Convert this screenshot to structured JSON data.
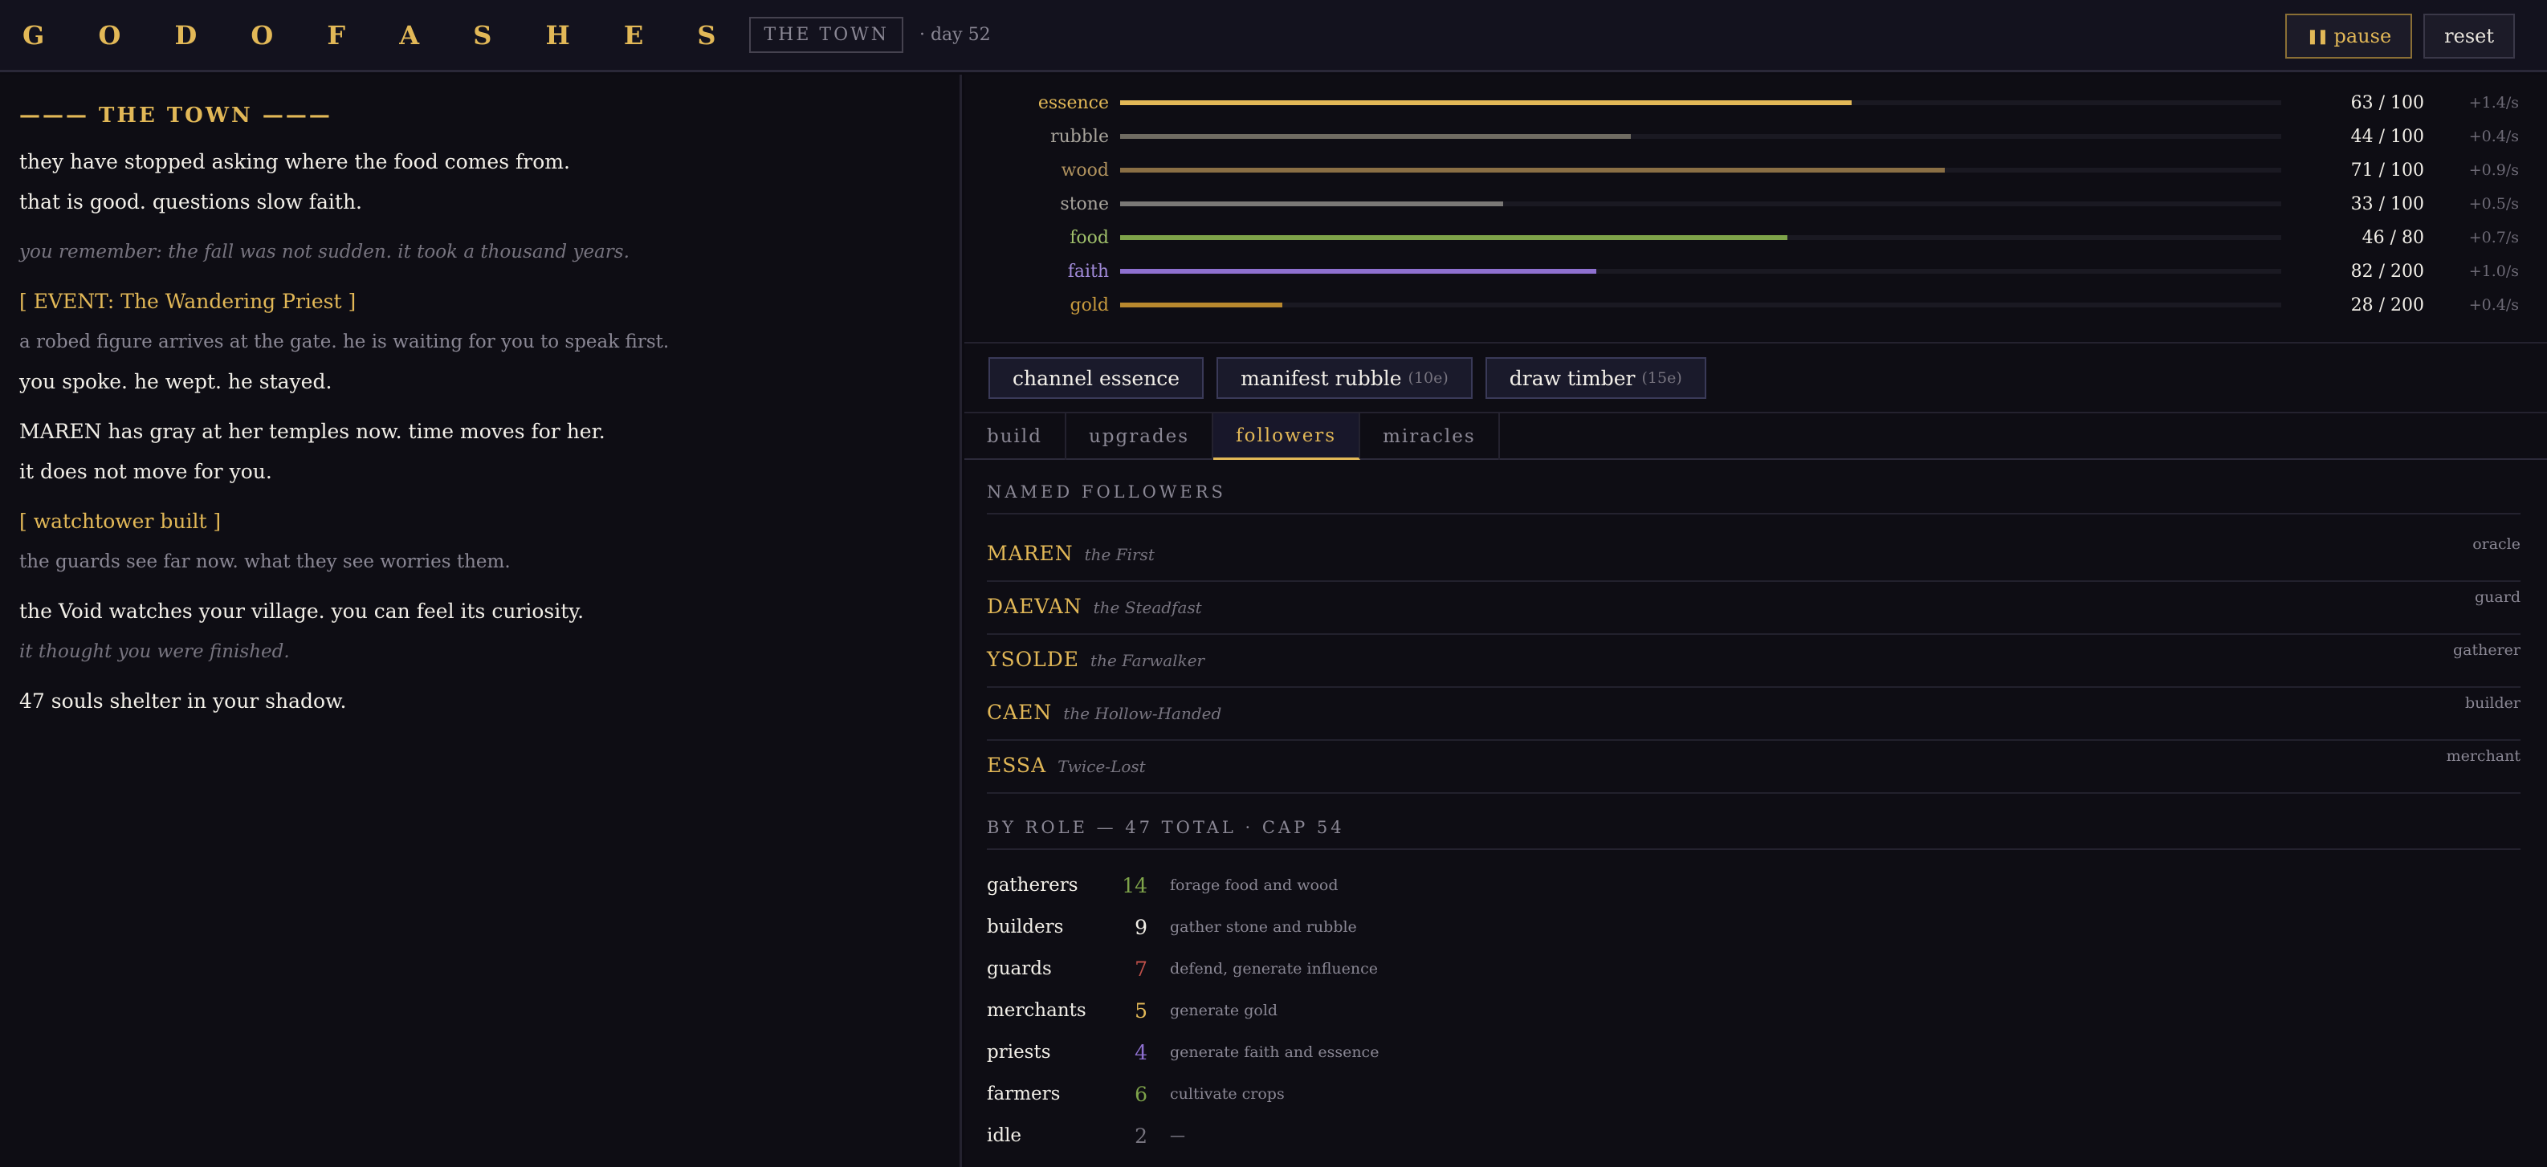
{
  "header": {
    "title": "G O D  O F  A S H E S",
    "location": "THE TOWN",
    "day": "· day 52",
    "pause_label": "pause",
    "reset_label": "reset"
  },
  "log": {
    "header": "——— THE TOWN ———",
    "lines": [
      {
        "text": "they have stopped asking where the food comes from.",
        "style": "white"
      },
      {
        "text": "that is good. questions slow faith.",
        "style": "white"
      },
      {
        "text": "you remember: the fall was not sudden. it took a thousand years.",
        "style": "italic"
      },
      {
        "text": "[ EVENT: The Wandering Priest ]",
        "style": "event"
      },
      {
        "text": "a robed figure arrives at the gate. he is waiting for you to speak first.",
        "style": "dim"
      },
      {
        "text": "you spoke. he wept. he stayed.",
        "style": "white"
      },
      {
        "text": "MAREN has gray at her temples now. time moves for her.",
        "style": "white"
      },
      {
        "text": "it does not move for you.",
        "style": "white"
      },
      {
        "text": "[ watchtower built ]",
        "style": "event"
      },
      {
        "text": "the guards see far now. what they see worries them.",
        "style": "dim"
      },
      {
        "text": "the Void watches your village. you can feel its curiosity.",
        "style": "white"
      },
      {
        "text": "it thought you were finished.",
        "style": "italic"
      },
      {
        "text": "47 souls shelter in your shadow.",
        "style": "white"
      }
    ]
  },
  "resources": [
    {
      "name": "essence",
      "amount": "63 / 100",
      "rate": "+1.4/s",
      "fraction": 0.63,
      "name_color": "#e2b857",
      "bar_color": "#e2b857"
    },
    {
      "name": "rubble",
      "amount": "44 / 100",
      "rate": "+0.4/s",
      "fraction": 0.44,
      "name_color": "#a8a49c",
      "bar_color": "#6f6b62"
    },
    {
      "name": "wood",
      "amount": "71 / 100",
      "rate": "+0.9/s",
      "fraction": 0.71,
      "name_color": "#b0925e",
      "bar_color": "#8a6f45"
    },
    {
      "name": "stone",
      "amount": "33 / 100",
      "rate": "+0.5/s",
      "fraction": 0.33,
      "name_color": "#a8a49c",
      "bar_color": "#7a7876"
    },
    {
      "name": "food",
      "amount": "46 / 80",
      "rate": "+0.7/s",
      "fraction": 0.575,
      "name_color": "#9fbf6a",
      "bar_color": "#7ea34a"
    },
    {
      "name": "faith",
      "amount": "82 / 200",
      "rate": "+1.0/s",
      "fraction": 0.41,
      "name_color": "#a08ad8",
      "bar_color": "#8e70d0"
    },
    {
      "name": "gold",
      "amount": "28 / 200",
      "rate": "+0.4/s",
      "fraction": 0.14,
      "name_color": "#c79a3e",
      "bar_color": "#b8882e"
    }
  ],
  "actions": [
    {
      "label": "channel essence",
      "cost": ""
    },
    {
      "label": "manifest rubble",
      "cost": "(10e)"
    },
    {
      "label": "draw timber",
      "cost": "(15e)"
    }
  ],
  "tabs": [
    {
      "label": "build",
      "active": false
    },
    {
      "label": "upgrades",
      "active": false
    },
    {
      "label": "followers",
      "active": true
    },
    {
      "label": "miracles",
      "active": false
    }
  ],
  "followers_heading": "NAMED FOLLOWERS",
  "followers": [
    {
      "name": "MAREN",
      "epithet": "the First",
      "role": "oracle"
    },
    {
      "name": "DAEVAN",
      "epithet": "the Steadfast",
      "role": "guard"
    },
    {
      "name": "YSOLDE",
      "epithet": "the Farwalker",
      "role": "gatherer"
    },
    {
      "name": "CAEN",
      "epithet": "the Hollow-Handed",
      "role": "builder"
    },
    {
      "name": "ESSA",
      "epithet": "Twice-Lost",
      "role": "merchant"
    }
  ],
  "roles_heading": "BY ROLE — 47 TOTAL · CAP 54",
  "roles": [
    {
      "name": "gatherers",
      "count": "14",
      "desc": "forage food and wood",
      "color": "#7ea34a"
    },
    {
      "name": "builders",
      "count": "9",
      "desc": "gather stone and rubble",
      "color": "#f2efe8"
    },
    {
      "name": "guards",
      "count": "7",
      "desc": "defend, generate influence",
      "color": "#c0504a"
    },
    {
      "name": "merchants",
      "count": "5",
      "desc": "generate gold",
      "color": "#e2b857"
    },
    {
      "name": "priests",
      "count": "4",
      "desc": "generate faith and essence",
      "color": "#8e70d0"
    },
    {
      "name": "farmers",
      "count": "6",
      "desc": "cultivate crops",
      "color": "#7ea34a"
    },
    {
      "name": "idle",
      "count": "2",
      "desc": "—",
      "color": "#77747f"
    }
  ]
}
